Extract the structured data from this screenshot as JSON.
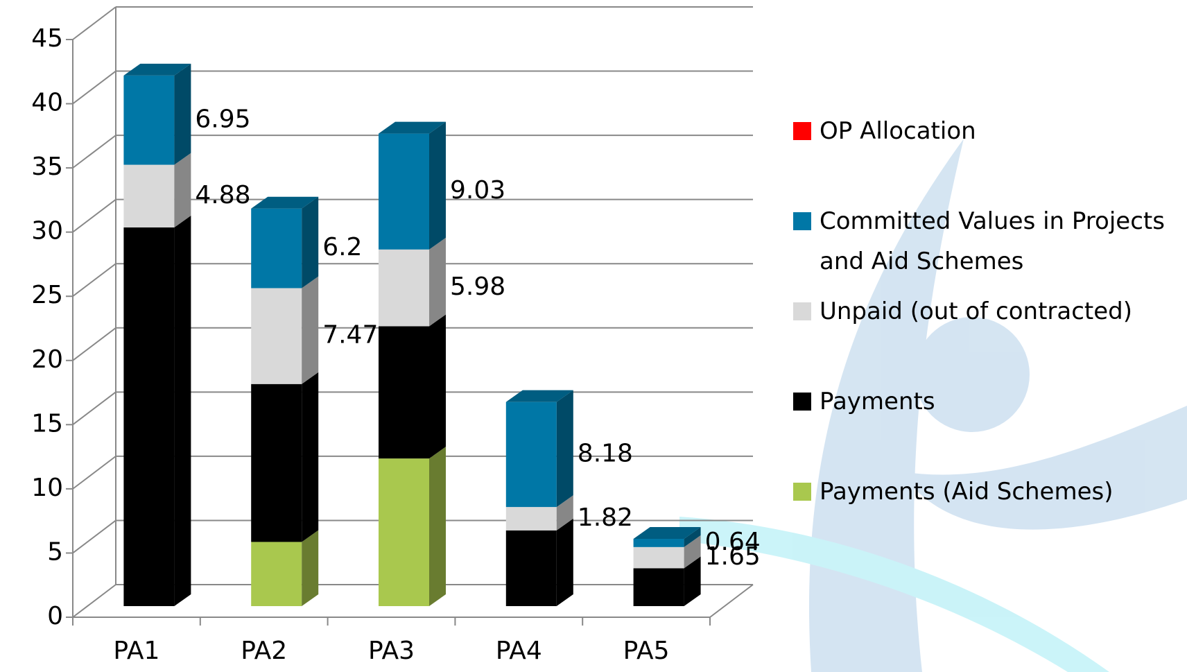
{
  "chart_data": {
    "type": "bar3d_stacked",
    "categories": [
      "PA1",
      "PA2",
      "PA3",
      "PA4",
      "PA5"
    ],
    "series": [
      {
        "name": "OP Allocation",
        "color": "#ff0000",
        "values": [
          null,
          null,
          null,
          null,
          null
        ]
      },
      {
        "name": "Committed Values in Projects and Aid Schemes",
        "color": "#0077a6",
        "values": [
          6.95,
          6.2,
          9.03,
          8.18,
          0.64
        ],
        "value_labels": [
          "6.95",
          "6.2",
          "9.03",
          "8.18",
          "0.64"
        ]
      },
      {
        "name": "Unpaid (out of contracted)",
        "color": "#d9d9d9",
        "values": [
          4.88,
          7.47,
          5.98,
          1.82,
          1.65
        ],
        "value_labels": [
          "4.88",
          "7.47",
          "5.98",
          "1.82",
          "1.65"
        ]
      },
      {
        "name": "Payments",
        "color": "#000000",
        "values": [
          29.5,
          12.3,
          10.3,
          5.9,
          2.95
        ]
      },
      {
        "name": "Payments (Aid Schemes)",
        "color": "#a9c84e",
        "values": [
          null,
          5.0,
          11.5,
          null,
          null
        ]
      }
    ],
    "ylim": [
      0,
      45
    ],
    "yticks": [
      0,
      5,
      10,
      15,
      20,
      25,
      30,
      35,
      40,
      45
    ],
    "grid": true
  }
}
